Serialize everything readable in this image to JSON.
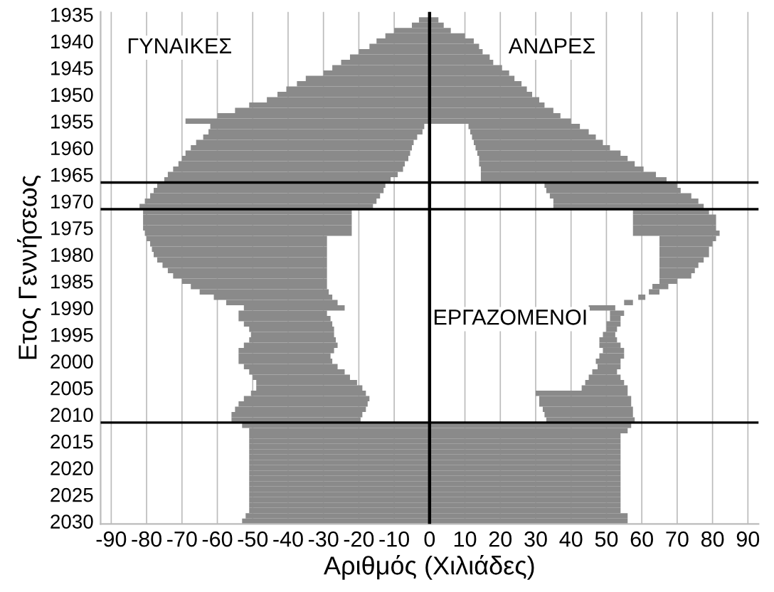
{
  "chart_data": {
    "type": "bar",
    "orientation": "horizontal",
    "xlabel": "Αριθμός (Χιλιάδες)",
    "ylabel": "Ετος Γεννήσεως",
    "categories": [
      "1935",
      null,
      null,
      null,
      null,
      "1940",
      null,
      null,
      null,
      null,
      "1945",
      null,
      null,
      null,
      null,
      "1950",
      null,
      null,
      null,
      null,
      "1955",
      null,
      null,
      null,
      null,
      "1960",
      null,
      null,
      null,
      null,
      "1965",
      null,
      null,
      null,
      null,
      "1970",
      null,
      null,
      null,
      null,
      "1975",
      null,
      null,
      null,
      null,
      "1980",
      null,
      null,
      null,
      null,
      "1985",
      null,
      null,
      null,
      null,
      "1990",
      null,
      null,
      null,
      null,
      "1995",
      null,
      null,
      null,
      null,
      "2000",
      null,
      null,
      null,
      null,
      "2005",
      null,
      null,
      null,
      null,
      "2010",
      null,
      null,
      null,
      null,
      "2015",
      null,
      null,
      null,
      null,
      "2020",
      null,
      null,
      null,
      null,
      "2025",
      null,
      null,
      null,
      null,
      "2030"
    ],
    "series": [
      {
        "name": "ΓΥΝΑΙΚΕΣ",
        "color": "#8a8a8a",
        "base": [
          null,
          -3,
          -5,
          -10,
          -12.5,
          -15,
          -17,
          -20,
          -22.5,
          -25,
          -27.5,
          -30,
          -35,
          -37.5,
          -40.5,
          -43,
          -46,
          -51,
          -55,
          -60,
          -69,
          -62,
          -62.5,
          -64,
          -66,
          -67.5,
          -69,
          -70,
          -71,
          -72.5,
          -74,
          -75,
          -77,
          -78,
          -79,
          -80.5,
          -82,
          -81,
          -81,
          -81,
          -81,
          -80.5,
          -80,
          -79,
          -78.5,
          -78,
          -77,
          -75.5,
          -74,
          -72.5,
          -70,
          -67.5,
          -65,
          -61,
          -57.5,
          -52.5,
          -54,
          -54,
          -52.5,
          -51,
          -50.5,
          -51,
          -52.5,
          -54,
          -54,
          -54,
          -52.5,
          -51,
          -50,
          -49,
          -49,
          -50.5,
          -52.5,
          -54,
          -55,
          -56,
          -56,
          -53,
          -51,
          -51,
          -51,
          -51,
          -51,
          -51,
          -51,
          -51,
          -51,
          -51,
          -51,
          -51,
          -51,
          -51,
          -51,
          -51,
          -52,
          -53
        ],
        "values": [
          null,
          3,
          5,
          10,
          12.5,
          15,
          17,
          20,
          22.5,
          25,
          27.5,
          30,
          35,
          37.5,
          40.5,
          43,
          46,
          51,
          55,
          60,
          69,
          60.5,
          60.5,
          60.5,
          61.5,
          62.5,
          63.5,
          64,
          64,
          65,
          65,
          64,
          64.5,
          65,
          65,
          65.5,
          66,
          59,
          59,
          59,
          59,
          58.5,
          51,
          50,
          49.5,
          49,
          48,
          46.5,
          45,
          43.5,
          41,
          38.5,
          36.5,
          33.5,
          31.5,
          28.5,
          25,
          26,
          25,
          24,
          23.5,
          24.5,
          26.5,
          27,
          26,
          26.5,
          26.5,
          27,
          27.5,
          28.5,
          30,
          32.5,
          35.5,
          36.5,
          37,
          37,
          36.5,
          53,
          51,
          51,
          51,
          51,
          51,
          51,
          51,
          51,
          51,
          51,
          51,
          51,
          51,
          51,
          51,
          51,
          52,
          53
        ]
      },
      {
        "name": "ΑΝΔΡΕΣ",
        "color": "#8a8a8a",
        "base": [
          null,
          0,
          0,
          0,
          0,
          0,
          0,
          0,
          0,
          0,
          0,
          0,
          0,
          0,
          0,
          0,
          0,
          0,
          0,
          0,
          0,
          11,
          11.5,
          12,
          12.5,
          13,
          13.5,
          14,
          14,
          14.5,
          14.5,
          14.5,
          32.5,
          33,
          34,
          35,
          35,
          57.5,
          57.5,
          57.5,
          57.5,
          57.5,
          65,
          65,
          65,
          65,
          65,
          65,
          65,
          65,
          65,
          63,
          62,
          59,
          55,
          45,
          51,
          51,
          50,
          50,
          49,
          48,
          48,
          49,
          48,
          47,
          47.5,
          46,
          45,
          44,
          43,
          30,
          31,
          31,
          32,
          32.5,
          33,
          0,
          0,
          0,
          0,
          0,
          0,
          0,
          0,
          0,
          0,
          0,
          0,
          0,
          0,
          0,
          0,
          0,
          0,
          0
        ],
        "values": [
          null,
          2.5,
          4,
          6,
          10,
          12.5,
          14,
          15,
          17,
          18,
          20.5,
          22.5,
          24,
          26,
          27.5,
          29,
          31,
          32.5,
          35,
          37,
          40,
          31.5,
          33.5,
          35,
          36.5,
          38,
          40.5,
          42,
          44,
          46,
          49.5,
          52.5,
          37.5,
          38,
          40,
          41,
          42.5,
          21.5,
          23.5,
          23.5,
          23.5,
          24.5,
          16,
          15,
          14,
          14,
          12.5,
          11,
          10,
          9,
          5,
          4.5,
          3,
          2,
          2.5,
          7.5,
          4,
          3,
          4,
          3,
          3.5,
          5,
          6,
          6,
          7,
          7,
          6.5,
          7,
          9,
          11,
          13,
          26,
          26,
          26,
          25.5,
          25,
          25,
          57,
          56,
          54,
          54,
          54,
          54,
          54,
          54,
          54,
          54,
          54,
          54,
          54,
          54,
          54,
          54,
          54,
          56,
          56
        ]
      }
    ],
    "annotations": [
      "ΕΡΓΑΖΟΜΕΝΟΙ"
    ],
    "ref_lines": [
      {
        "axis": "x",
        "value": 0,
        "color": "#000000"
      }
    ],
    "xlim": [
      -93,
      93
    ],
    "xticks": [
      -90,
      -80,
      -70,
      -60,
      -50,
      -40,
      -30,
      -20,
      -10,
      0,
      10,
      20,
      30,
      40,
      50,
      60,
      70,
      80,
      90
    ],
    "grid": "x"
  }
}
